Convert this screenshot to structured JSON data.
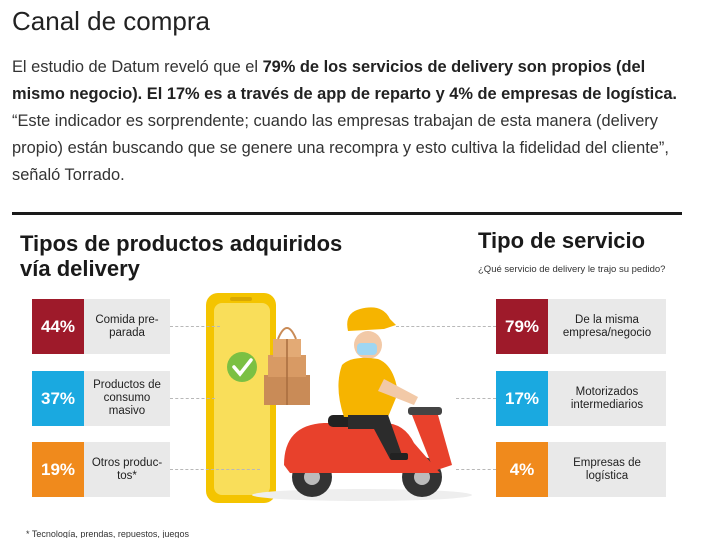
{
  "heading": "Canal de compra",
  "paragraph": {
    "p1": "El estudio de Datum reveló que el ",
    "b1": "79% de los servicios de delivery son propios (del mismo negocio). El 17% es a través de app de reparto y 4% de empresas de logística.",
    "p2": " “Este indicador es sorprendente; cuando las empresas trabajan de esta manera (delivery propio) están buscando que se genere una recompra y esto cultiva la fidelidad del cliente”, señaló Torrado."
  },
  "infographic": {
    "left_title_line1": "Tipos de productos adquiridos",
    "left_title_line2": "vía delivery",
    "right_title": "Tipo de servicio",
    "right_question": "¿Qué servicio de delivery le trajo su pedido?",
    "products": [
      {
        "pct": "44%",
        "label": "Comida pre-parada",
        "color": "#9e1a2a"
      },
      {
        "pct": "37%",
        "label": "Productos de consumo masivo",
        "color": "#1aa9e0"
      },
      {
        "pct": "19%",
        "label": "Otros produc-tos*",
        "color": "#f08a1c"
      }
    ],
    "services": [
      {
        "pct": "79%",
        "label": "De la misma empresa/negocio",
        "color": "#9e1a2a"
      },
      {
        "pct": "17%",
        "label": "Motorizados intermediarios",
        "color": "#1aa9e0"
      },
      {
        "pct": "4%",
        "label": "Empresas de logística",
        "color": "#f08a1c"
      }
    ],
    "footnote": "* Tecnología, prendas, repuestos, juegos",
    "illustration_icons": [
      "smartphone-icon",
      "check-badge-icon",
      "parcel-stack-icon",
      "delivery-rider-scooter-icon"
    ]
  }
}
